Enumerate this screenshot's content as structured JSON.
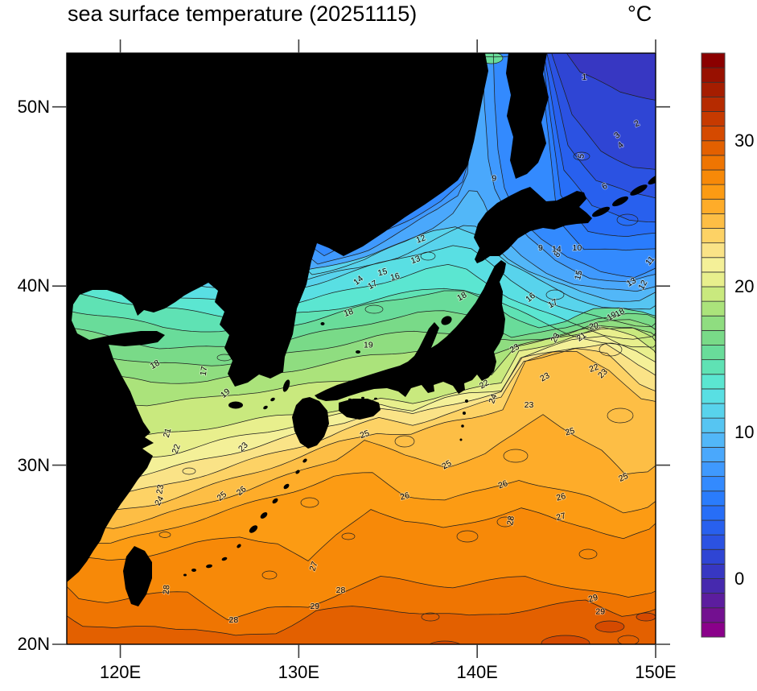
{
  "title": "sea surface temperature (20251115)",
  "unit_label": "°C",
  "axes": {
    "lon_range": [
      117,
      150
    ],
    "lat_range": [
      20,
      53
    ],
    "lon_ticks": [
      {
        "deg": 120,
        "label": "120E"
      },
      {
        "deg": 130,
        "label": "130E"
      },
      {
        "deg": 140,
        "label": "140E"
      },
      {
        "deg": 150,
        "label": "150E"
      }
    ],
    "lat_ticks": [
      {
        "deg": 20,
        "label": "20N"
      },
      {
        "deg": 30,
        "label": "30N"
      },
      {
        "deg": 40,
        "label": "40N"
      },
      {
        "deg": 50,
        "label": "50N"
      }
    ]
  },
  "colorbar": {
    "min_c": -4,
    "max_c": 36,
    "step_c": 1,
    "tick_labels": [
      {
        "value": 0,
        "label": "0"
      },
      {
        "value": 10,
        "label": "10"
      },
      {
        "value": 20,
        "label": "20"
      },
      {
        "value": 30,
        "label": "30"
      }
    ],
    "colors_low_to_high": [
      "#8a018a",
      "#731090",
      "#5c1d9e",
      "#4629ae",
      "#3737c2",
      "#2f45d4",
      "#2b52e2",
      "#2860ee",
      "#276ef7",
      "#2a7cfc",
      "#338afe",
      "#3f99fe",
      "#4aa8fc",
      "#52b7f8",
      "#56c5f2",
      "#58d3ec",
      "#59dfe3",
      "#5be6d1",
      "#5fe2b4",
      "#69dc9a",
      "#79da88",
      "#8fdd80",
      "#abe37b",
      "#c9e97e",
      "#e8ef8d",
      "#f4f098",
      "#fae387",
      "#fdd265",
      "#fdbe45",
      "#feac29",
      "#fc9b13",
      "#f78908",
      "#ef7502",
      "#e36000",
      "#d54a00",
      "#c63a00",
      "#b62b00",
      "#a51d00",
      "#981000",
      "#8b0000"
    ]
  },
  "chart_data": {
    "type": "heatmap",
    "title": "sea surface temperature (20251115)",
    "unit": "°C",
    "lon_range": [
      117,
      150
    ],
    "lat_range": [
      20,
      53
    ],
    "contour_interval_c": 1,
    "contour_levels": [
      1,
      2,
      3,
      4,
      5,
      6,
      7,
      8,
      9,
      10,
      11,
      12,
      13,
      14,
      15,
      16,
      17,
      18,
      19,
      20,
      21,
      22,
      23,
      24,
      25,
      26,
      27,
      28,
      29
    ],
    "colorbar_range_c": [
      -4,
      36
    ],
    "land_color": "#000000",
    "legend_position": "right",
    "isotherm_labels": [
      {
        "v": "1",
        "lon": 146.0,
        "lat": 51.65,
        "r": 0
      },
      {
        "v": "2",
        "lon": 148.95,
        "lat": 49.05,
        "r": -25
      },
      {
        "v": "3",
        "lon": 147.85,
        "lat": 48.4,
        "r": -40
      },
      {
        "v": "4",
        "lon": 148.05,
        "lat": 47.85,
        "r": -40
      },
      {
        "v": "5",
        "lon": 145.85,
        "lat": 47.25,
        "r": -80
      },
      {
        "v": "6",
        "lon": 147.15,
        "lat": 45.55,
        "r": -30
      },
      {
        "v": "9",
        "lon": 140.95,
        "lat": 46.0,
        "r": 0
      },
      {
        "v": "8",
        "lon": 144.5,
        "lat": 41.75,
        "r": -50
      },
      {
        "v": "9",
        "lon": 143.55,
        "lat": 42.1,
        "r": 0
      },
      {
        "v": "14",
        "lon": 144.45,
        "lat": 42.05,
        "r": 0
      },
      {
        "v": "10",
        "lon": 145.6,
        "lat": 42.1,
        "r": 0
      },
      {
        "v": "11",
        "lon": 149.7,
        "lat": 41.4,
        "r": -50
      },
      {
        "v": "12",
        "lon": 149.3,
        "lat": 40.05,
        "r": -60
      },
      {
        "v": "13",
        "lon": 148.65,
        "lat": 40.2,
        "r": -30
      },
      {
        "v": "15",
        "lon": 145.7,
        "lat": 40.6,
        "r": -75
      },
      {
        "v": "16",
        "lon": 143.0,
        "lat": 39.35,
        "r": -40
      },
      {
        "v": "17",
        "lon": 144.25,
        "lat": 39.0,
        "r": -30
      },
      {
        "v": "12",
        "lon": 136.85,
        "lat": 42.6,
        "r": -20
      },
      {
        "v": "13",
        "lon": 136.55,
        "lat": 41.45,
        "r": -20
      },
      {
        "v": "14",
        "lon": 133.35,
        "lat": 40.3,
        "r": -40
      },
      {
        "v": "15",
        "lon": 134.7,
        "lat": 40.75,
        "r": -15
      },
      {
        "v": "16",
        "lon": 135.4,
        "lat": 40.5,
        "r": -15
      },
      {
        "v": "17",
        "lon": 134.15,
        "lat": 40.05,
        "r": -30
      },
      {
        "v": "18",
        "lon": 132.8,
        "lat": 38.5,
        "r": -20
      },
      {
        "v": "18",
        "lon": 139.15,
        "lat": 39.4,
        "r": -30
      },
      {
        "v": "19",
        "lon": 133.9,
        "lat": 36.7,
        "r": 0
      },
      {
        "v": "18",
        "lon": 121.95,
        "lat": 35.6,
        "r": -30
      },
      {
        "v": "17",
        "lon": 124.7,
        "lat": 35.25,
        "r": -80
      },
      {
        "v": "19",
        "lon": 125.9,
        "lat": 34.0,
        "r": -40
      },
      {
        "v": "21",
        "lon": 122.65,
        "lat": 31.8,
        "r": -75
      },
      {
        "v": "22",
        "lon": 123.15,
        "lat": 30.9,
        "r": -70
      },
      {
        "v": "23",
        "lon": 122.25,
        "lat": 28.65,
        "r": -80
      },
      {
        "v": "24",
        "lon": 122.2,
        "lat": 28.0,
        "r": -60
      },
      {
        "v": "25",
        "lon": 125.7,
        "lat": 28.25,
        "r": -40
      },
      {
        "v": "26",
        "lon": 126.8,
        "lat": 28.55,
        "r": -40
      },
      {
        "v": "23",
        "lon": 126.9,
        "lat": 31.0,
        "r": -45
      },
      {
        "v": "27",
        "lon": 130.85,
        "lat": 24.35,
        "r": -70
      },
      {
        "v": "28",
        "lon": 122.6,
        "lat": 23.05,
        "r": -85
      },
      {
        "v": "28",
        "lon": 126.35,
        "lat": 21.35,
        "r": 0
      },
      {
        "v": "29",
        "lon": 130.9,
        "lat": 22.1,
        "r": 0
      },
      {
        "v": "22",
        "lon": 140.4,
        "lat": 34.5,
        "r": -30
      },
      {
        "v": "24",
        "lon": 140.9,
        "lat": 33.7,
        "r": -70
      },
      {
        "v": "23",
        "lon": 142.9,
        "lat": 33.35,
        "r": 0
      },
      {
        "v": "23",
        "lon": 143.8,
        "lat": 34.9,
        "r": -30
      },
      {
        "v": "22",
        "lon": 146.55,
        "lat": 35.4,
        "r": -20
      },
      {
        "v": "23",
        "lon": 147.05,
        "lat": 35.1,
        "r": -45
      },
      {
        "v": "20.",
        "lon": 146.6,
        "lat": 37.75,
        "r": -10
      },
      {
        "v": "19",
        "lon": 147.55,
        "lat": 38.3,
        "r": -30
      },
      {
        "v": "18",
        "lon": 148.0,
        "lat": 38.5,
        "r": -30
      },
      {
        "v": "21",
        "lon": 145.85,
        "lat": 37.15,
        "r": -35
      },
      {
        "v": "23",
        "lon": 144.4,
        "lat": 37.1,
        "r": -60
      },
      {
        "v": "23",
        "lon": 142.1,
        "lat": 36.5,
        "r": -30
      },
      {
        "v": "25",
        "lon": 133.7,
        "lat": 31.7,
        "r": -20
      },
      {
        "v": "25",
        "lon": 138.3,
        "lat": 30.0,
        "r": -30
      },
      {
        "v": "25",
        "lon": 145.2,
        "lat": 31.85,
        "r": -15
      },
      {
        "v": "25",
        "lon": 148.2,
        "lat": 29.3,
        "r": -25
      },
      {
        "v": "26",
        "lon": 135.95,
        "lat": 28.25,
        "r": -15
      },
      {
        "v": "26",
        "lon": 141.45,
        "lat": 28.9,
        "r": -20
      },
      {
        "v": "26",
        "lon": 144.7,
        "lat": 28.2,
        "r": -15
      },
      {
        "v": "27",
        "lon": 144.7,
        "lat": 27.1,
        "r": -15
      },
      {
        "v": "28",
        "lon": 141.9,
        "lat": 26.9,
        "r": -80
      },
      {
        "v": "28",
        "lon": 132.35,
        "lat": 23.0,
        "r": 0
      },
      {
        "v": "29",
        "lon": 146.5,
        "lat": 22.55,
        "r": -15
      },
      {
        "v": "29",
        "lon": 146.9,
        "lat": 21.8,
        "r": 0
      }
    ]
  }
}
